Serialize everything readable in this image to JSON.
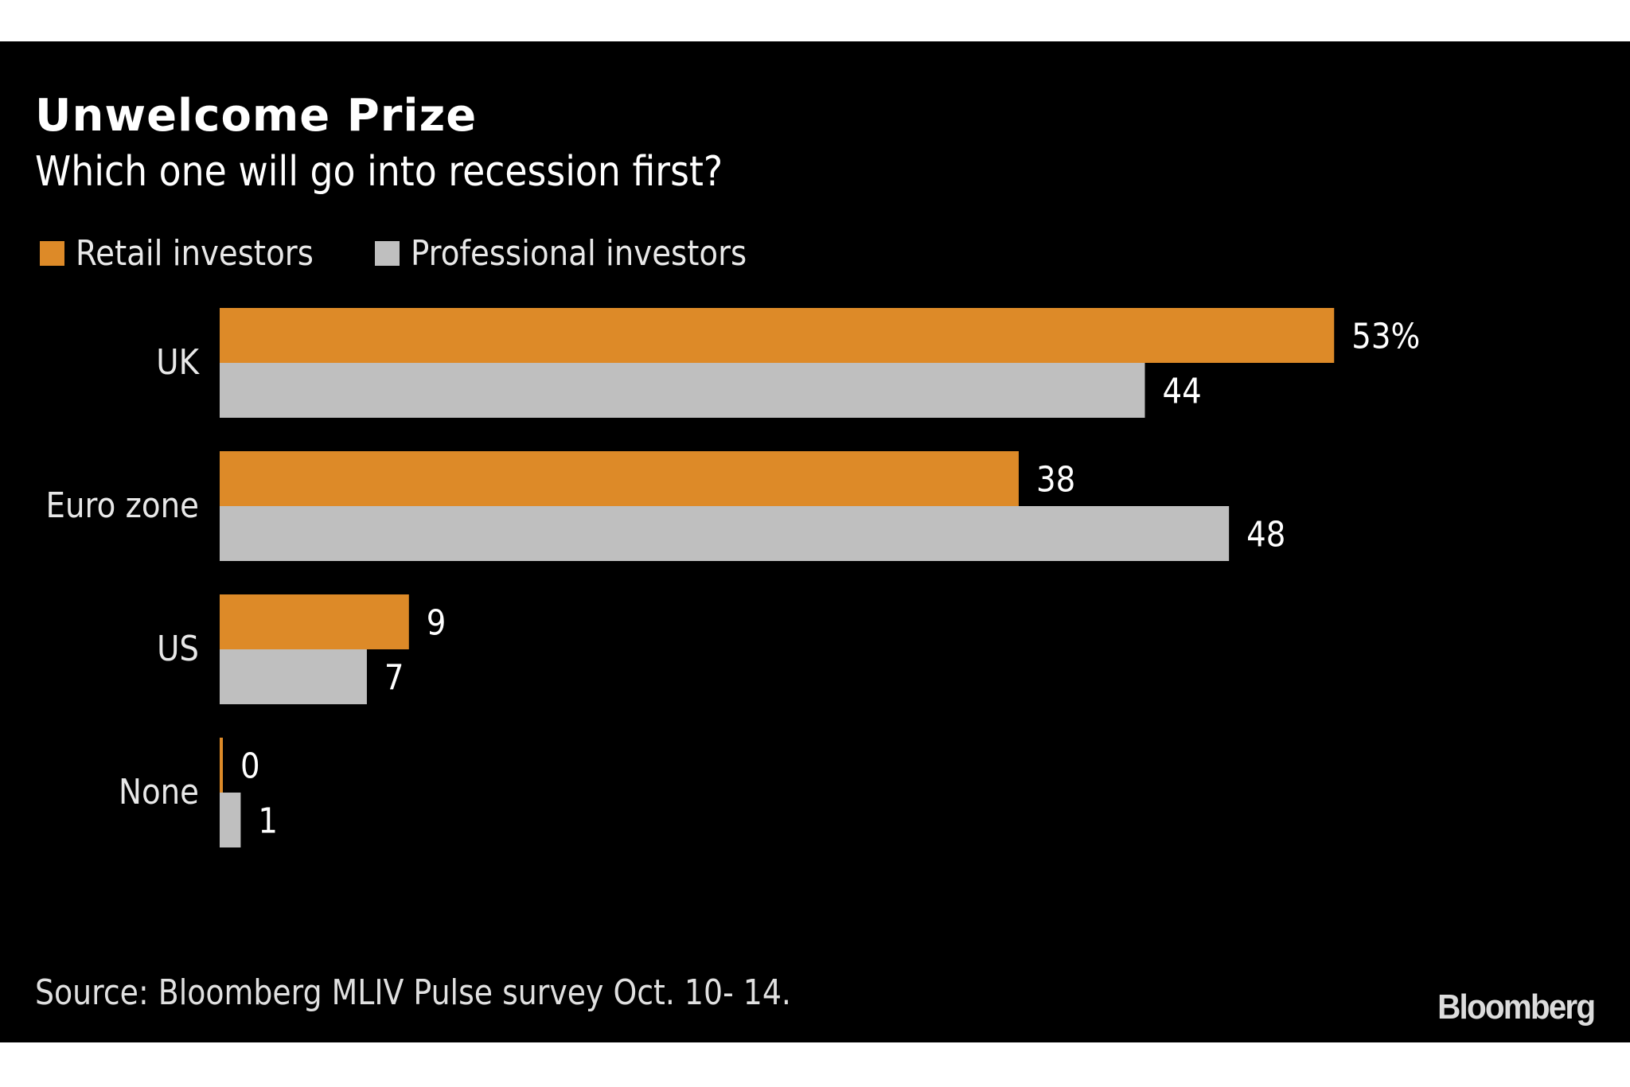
{
  "colors": {
    "background": "#000000",
    "page": "#ffffff",
    "retail": "#DD8A28",
    "professional": "#BFBFBF",
    "text": "#ffffff"
  },
  "chart_data": {
    "type": "bar",
    "orientation": "horizontal",
    "title": "Unwelcome Prize",
    "subtitle": "Which one will go into recession first?",
    "xlabel": "",
    "ylabel": "",
    "categories": [
      "UK",
      "Euro zone",
      "US",
      "None"
    ],
    "series": [
      {
        "name": "Retail investors",
        "color": "#DD8A28",
        "values": [
          53,
          38,
          9,
          0
        ],
        "labels": [
          "53%",
          "38",
          "9",
          "0"
        ]
      },
      {
        "name": "Professional investors",
        "color": "#BFBFBF",
        "values": [
          44,
          48,
          7,
          1
        ],
        "labels": [
          "44",
          "48",
          "7",
          "1"
        ]
      }
    ],
    "unit": "%",
    "xlim": [
      0,
      53
    ],
    "grid": false,
    "legend_position": "top-left",
    "source": "Source: Bloomberg MLIV Pulse survey Oct. 10- 14."
  },
  "footer": {
    "source": "Source: Bloomberg MLIV Pulse survey Oct. 10- 14.",
    "brand": "Bloomberg"
  }
}
